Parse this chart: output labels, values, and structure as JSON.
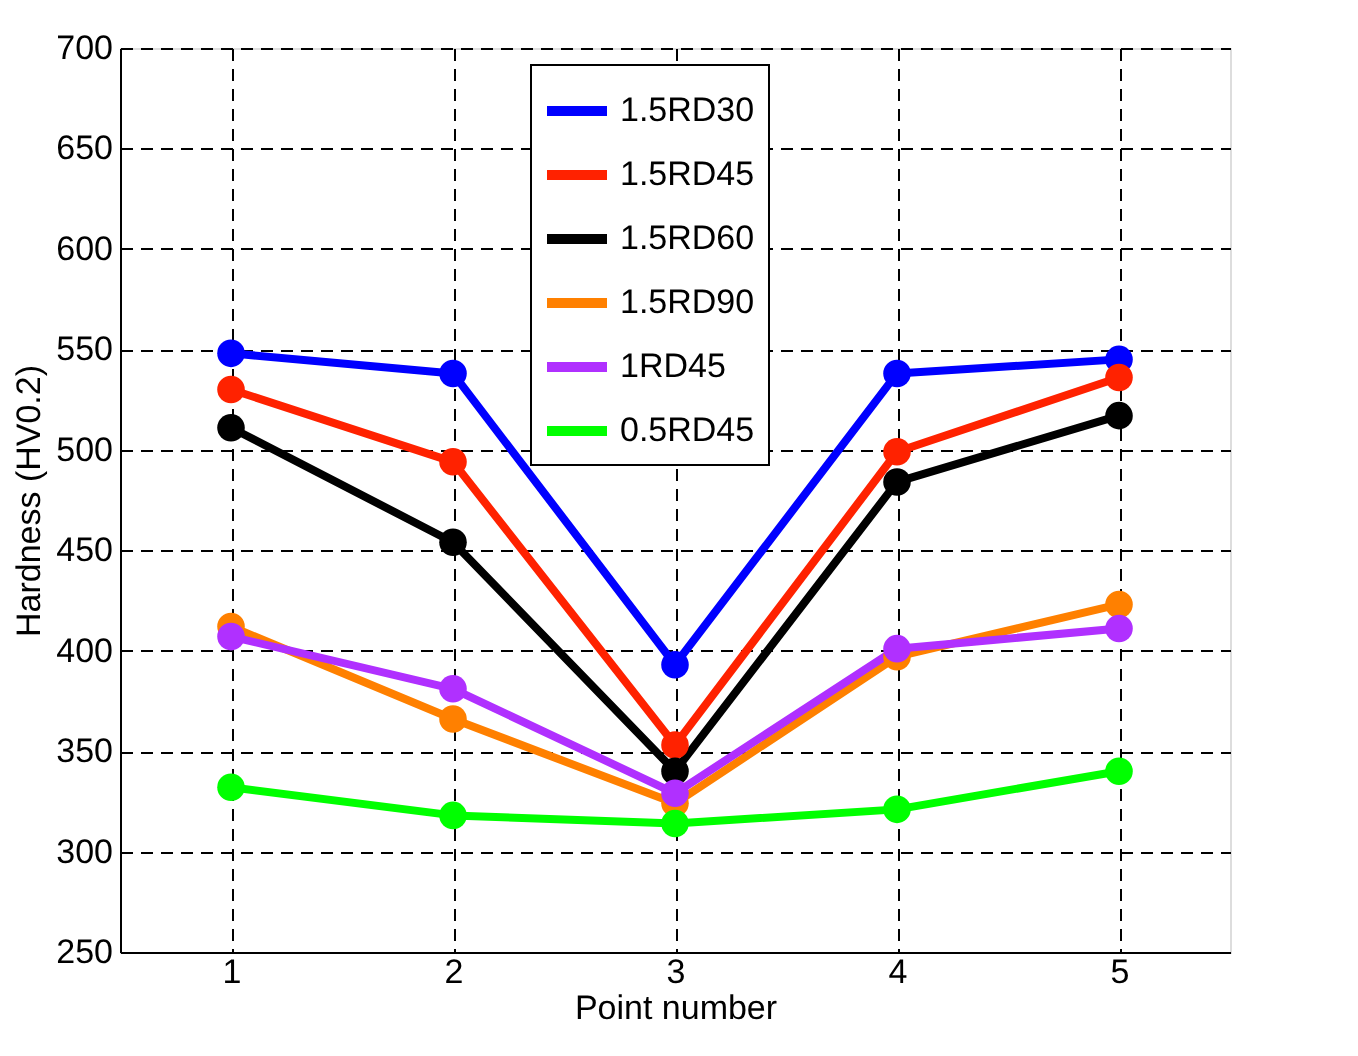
{
  "chart_data": {
    "type": "line",
    "xlabel": "Point number",
    "ylabel": "Hardness (HV0.2)",
    "x": [
      1,
      2,
      3,
      4,
      5
    ],
    "xlim": [
      0.5,
      5.5
    ],
    "xticks": [
      1,
      2,
      3,
      4,
      5
    ],
    "ylim": [
      250,
      700
    ],
    "yticks": [
      250,
      300,
      350,
      400,
      450,
      500,
      550,
      600,
      650,
      700
    ],
    "grid": true,
    "legend": "top",
    "marker": "circle",
    "line_style": "solid",
    "series": [
      {
        "name": "1.5RD30",
        "color": "#0000ff",
        "values": [
          548,
          538,
          393,
          538,
          545
        ]
      },
      {
        "name": "1.5RD45",
        "color": "#ff2200",
        "values": [
          530,
          494,
          353,
          499,
          536
        ]
      },
      {
        "name": "1.5RD60",
        "color": "#000000",
        "values": [
          511,
          454,
          340,
          484,
          517
        ]
      },
      {
        "name": "1.5RD90",
        "color": "#ff8000",
        "values": [
          412,
          366,
          324,
          397,
          423
        ]
      },
      {
        "name": "1RD45",
        "color": "#b030ff",
        "values": [
          407,
          381,
          329,
          401,
          411
        ]
      },
      {
        "name": "0.5RD45",
        "color": "#00ff00",
        "values": [
          332,
          318,
          314,
          321,
          340
        ]
      }
    ]
  }
}
